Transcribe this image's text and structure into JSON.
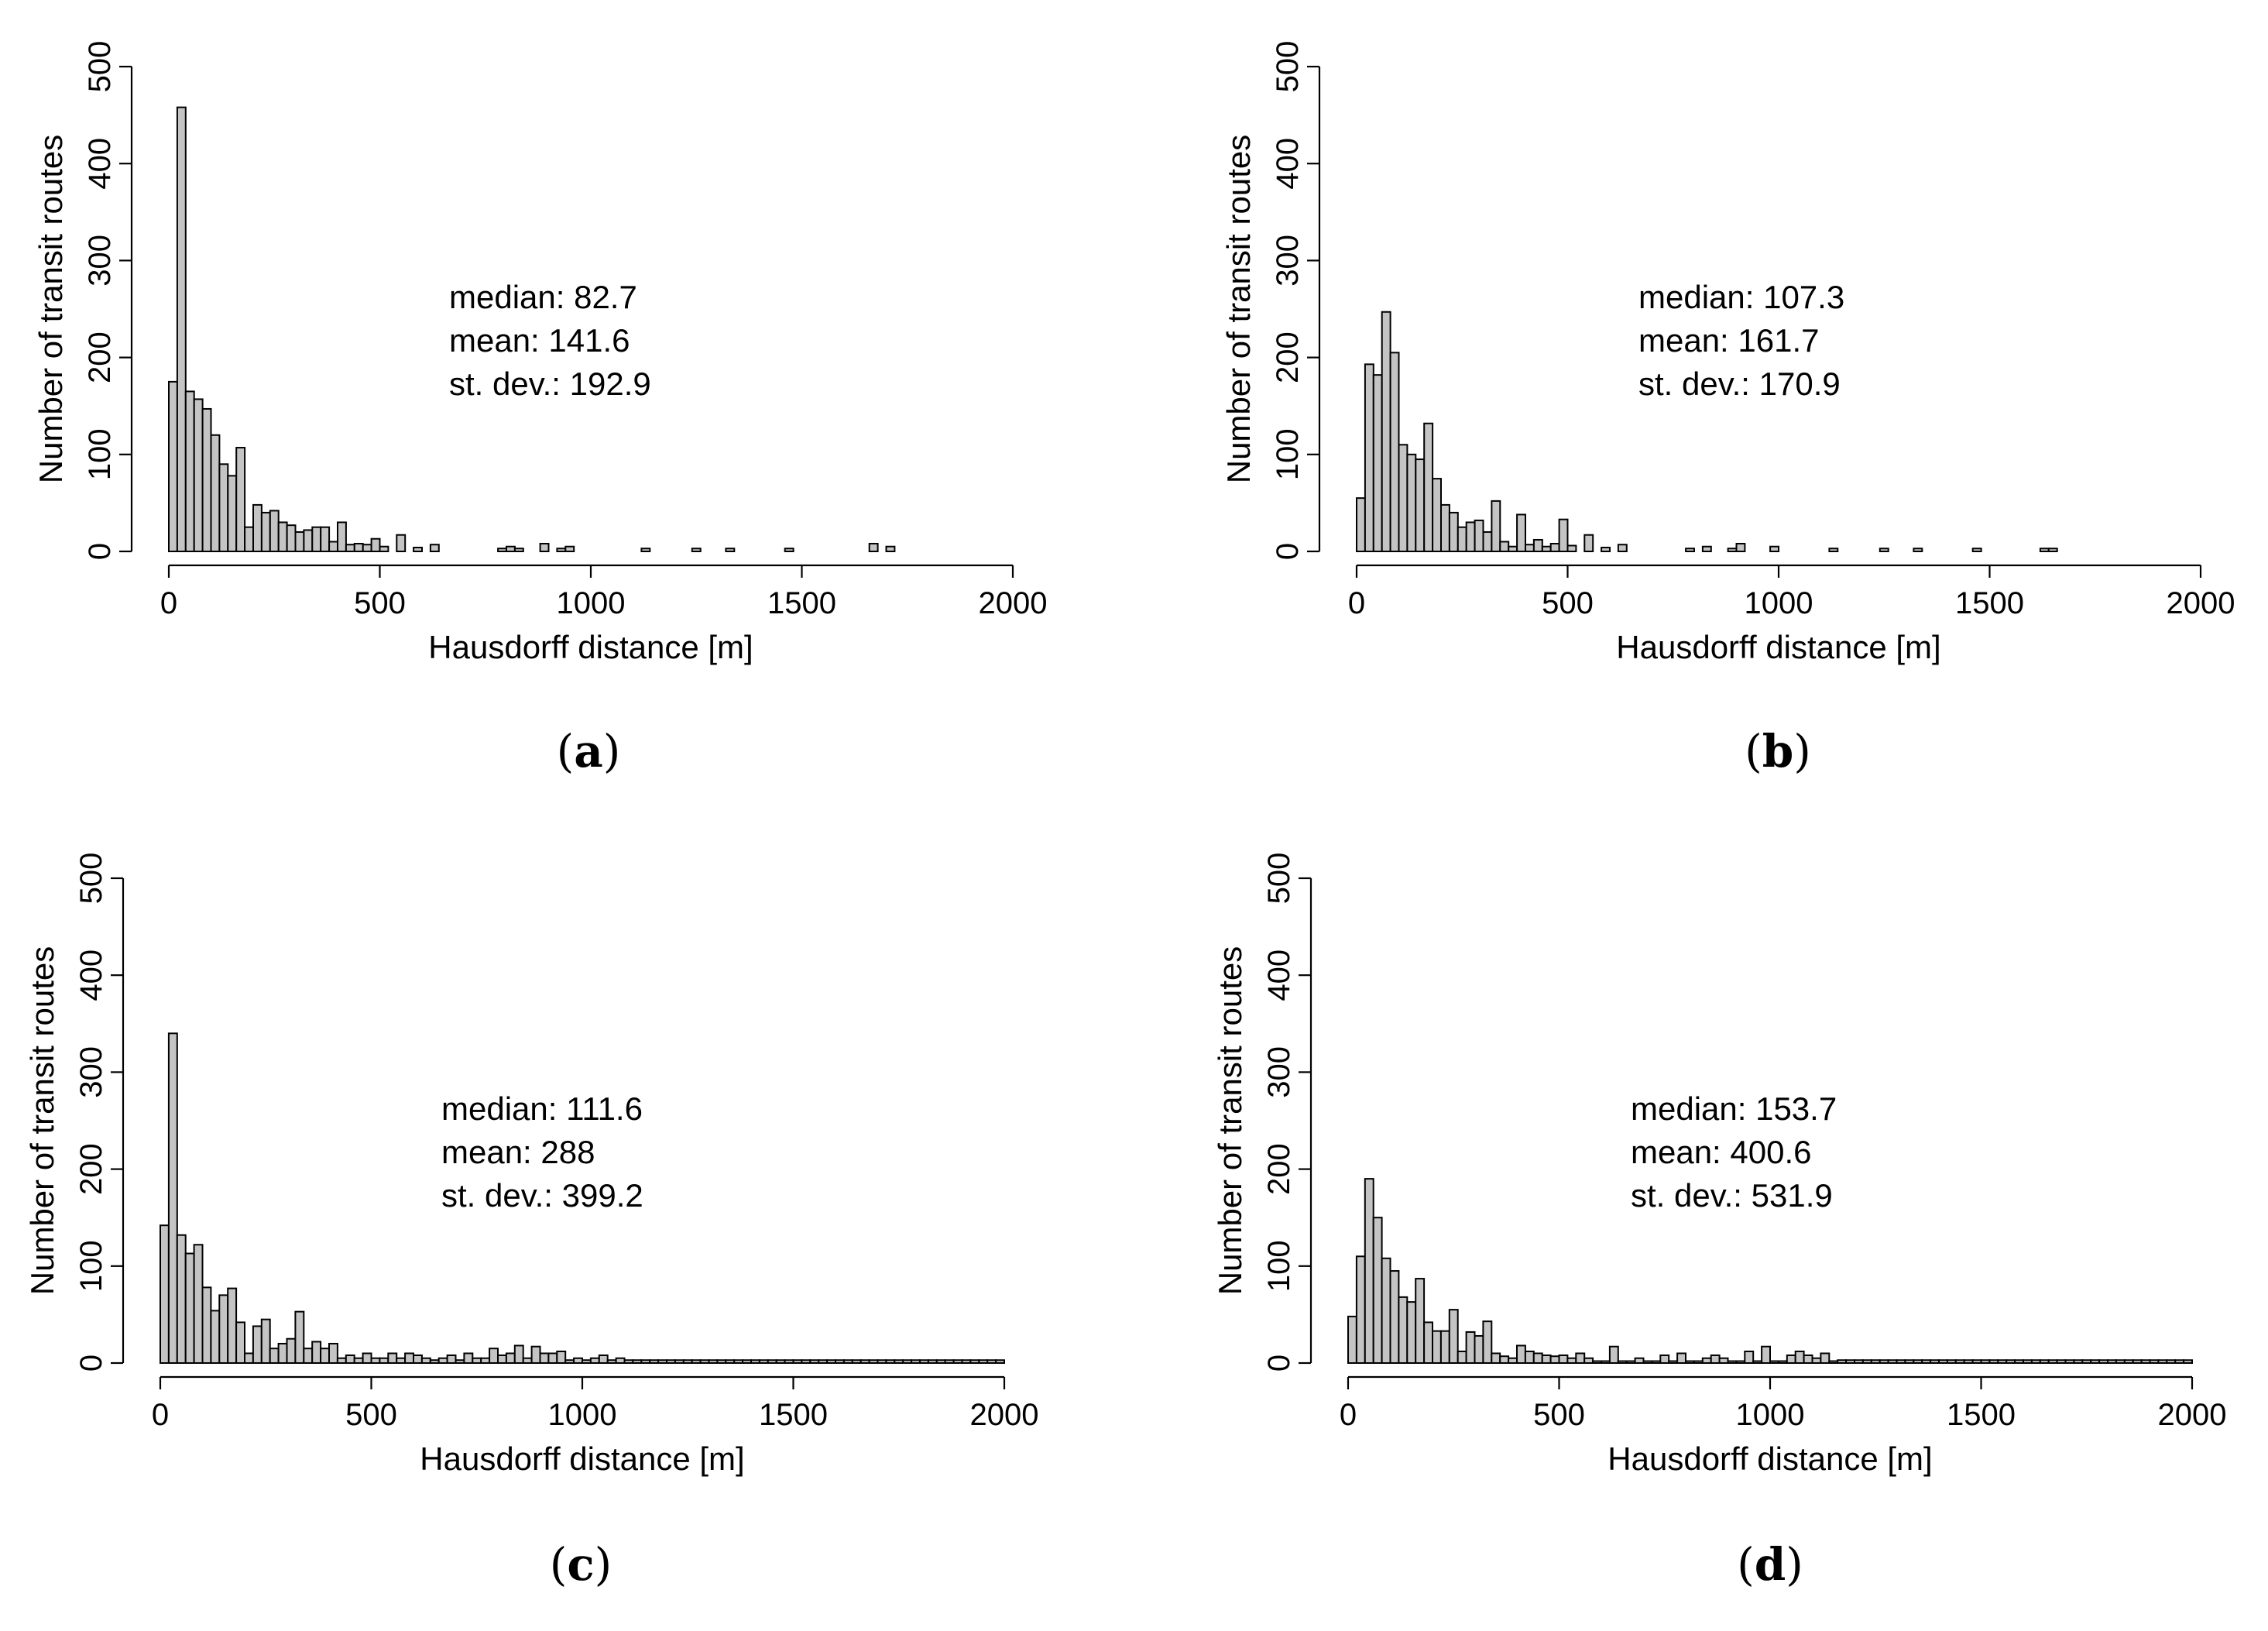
{
  "chart_data": [
    {
      "type": "bar",
      "panel_label": "a",
      "xlabel": "Hausdorff distance [m]",
      "ylabel": "Number of transit routes",
      "xlim": [
        0,
        2000
      ],
      "ylim": [
        0,
        500
      ],
      "xticks": [
        0,
        500,
        1000,
        1500,
        2000
      ],
      "yticks": [
        0,
        100,
        200,
        300,
        400,
        500
      ],
      "bin_width": 20,
      "stats": [
        "median: 82.7",
        "mean: 141.6",
        "st. dev.: 192.9"
      ],
      "values": [
        175,
        458,
        165,
        157,
        147,
        120,
        90,
        78,
        107,
        25,
        48,
        40,
        42,
        30,
        27,
        20,
        22,
        25,
        25,
        10,
        30,
        7,
        8,
        7,
        13,
        5,
        0,
        17,
        0,
        4,
        0,
        7,
        0,
        0,
        0,
        0,
        0,
        0,
        0,
        0,
        0,
        0,
        0,
        0,
        0,
        0,
        0,
        0,
        0,
        0,
        0,
        0,
        0,
        0,
        0,
        0,
        0,
        0,
        0,
        0,
        0,
        0,
        0,
        0,
        0,
        0,
        0,
        0,
        0,
        0,
        0,
        0,
        0,
        0,
        0,
        0,
        0,
        0,
        0,
        0,
        0,
        0,
        0,
        0,
        0,
        0,
        0,
        0,
        0,
        0,
        0,
        0,
        0,
        0,
        0,
        0,
        0,
        0,
        0,
        0
      ]
    },
    {
      "type": "bar",
      "panel_label": "b",
      "xlabel": "Hausdorff distance [m]",
      "ylabel": "Number of transit routes",
      "xlim": [
        0,
        2000
      ],
      "ylim": [
        0,
        500
      ],
      "xticks": [
        0,
        500,
        1000,
        1500,
        2000
      ],
      "yticks": [
        0,
        100,
        200,
        300,
        400,
        500
      ],
      "bin_width": 20,
      "stats": [
        "median: 107.3",
        "mean: 161.7",
        "st. dev.: 170.9"
      ],
      "values": [
        55,
        193,
        182,
        247,
        205,
        110,
        100,
        95,
        132,
        75,
        48,
        40,
        25,
        30,
        32,
        20,
        52,
        10,
        5,
        38,
        7,
        12,
        5,
        8,
        33,
        6,
        0,
        17,
        0,
        4,
        0,
        7,
        0,
        0,
        0,
        0,
        0,
        0,
        0,
        0,
        0,
        0,
        0,
        0,
        0,
        0,
        0,
        0,
        0,
        0,
        0,
        0,
        0,
        0,
        0,
        0,
        0,
        0,
        0,
        0,
        0,
        0,
        0,
        0,
        0,
        0,
        0,
        0,
        0,
        0,
        0,
        0,
        0,
        0,
        0,
        0,
        0,
        0,
        0,
        0,
        0,
        0,
        0,
        0,
        0,
        0,
        0,
        0,
        0,
        0,
        0,
        0,
        0,
        0,
        0,
        0,
        0,
        0,
        0,
        0
      ]
    },
    {
      "type": "bar",
      "panel_label": "c",
      "xlabel": "Hausdorff distance [m]",
      "ylabel": "Number of transit routes",
      "xlim": [
        0,
        2000
      ],
      "ylim": [
        0,
        500
      ],
      "xticks": [
        0,
        500,
        1000,
        1500,
        2000
      ],
      "yticks": [
        0,
        100,
        200,
        300,
        400,
        500
      ],
      "bin_width": 20,
      "stats": [
        "median: 111.6",
        "mean: 288",
        "st. dev.: 399.2"
      ],
      "values": [
        142,
        340,
        132,
        113,
        122,
        78,
        54,
        70,
        77,
        42,
        10,
        38,
        45,
        15,
        20,
        25,
        53,
        15,
        22,
        15,
        20,
        5,
        8,
        5,
        10,
        5,
        5,
        10,
        5,
        10,
        8,
        5,
        3,
        5,
        8,
        3,
        10,
        5,
        5,
        15,
        8,
        10,
        18,
        5,
        17,
        10,
        10,
        12,
        3,
        5,
        3,
        5,
        8,
        3,
        5,
        3,
        3,
        3,
        3,
        3,
        3,
        3,
        3,
        3,
        3,
        3,
        3,
        3,
        3,
        3,
        3,
        3,
        3,
        3,
        3,
        3,
        3,
        3,
        3,
        3,
        3,
        3,
        3,
        3,
        3,
        3,
        3,
        3,
        3,
        3,
        3,
        3,
        3,
        3,
        3,
        3,
        3,
        3,
        3,
        3
      ]
    },
    {
      "type": "bar",
      "panel_label": "d",
      "xlabel": "Hausdorff distance [m]",
      "ylabel": "Number of transit routes",
      "xlim": [
        0,
        2000
      ],
      "ylim": [
        0,
        500
      ],
      "xticks": [
        0,
        500,
        1000,
        1500,
        2000
      ],
      "yticks": [
        0,
        100,
        200,
        300,
        400,
        500
      ],
      "bin_width": 20,
      "stats": [
        "median: 153.7",
        "mean: 400.6",
        "st. dev.: 531.9"
      ],
      "values": [
        48,
        110,
        190,
        150,
        108,
        95,
        68,
        63,
        87,
        42,
        33,
        33,
        55,
        12,
        32,
        28,
        43,
        10,
        7,
        5,
        18,
        12,
        10,
        8,
        7,
        8,
        5,
        10,
        5,
        2,
        2,
        17,
        2,
        2,
        5,
        2,
        2,
        8,
        2,
        10,
        2,
        2,
        5,
        8,
        5,
        2,
        2,
        12,
        2,
        17,
        2,
        2,
        8,
        12,
        8,
        5,
        10,
        2,
        3,
        3,
        3,
        3,
        3,
        3,
        3,
        3,
        3,
        3,
        3,
        3,
        3,
        3,
        3,
        3,
        3,
        3,
        3,
        3,
        3,
        3,
        3,
        3,
        3,
        3,
        3,
        3,
        3,
        3,
        3,
        3,
        3,
        3,
        3,
        3,
        3,
        3,
        3,
        3,
        3,
        3
      ]
    }
  ]
}
